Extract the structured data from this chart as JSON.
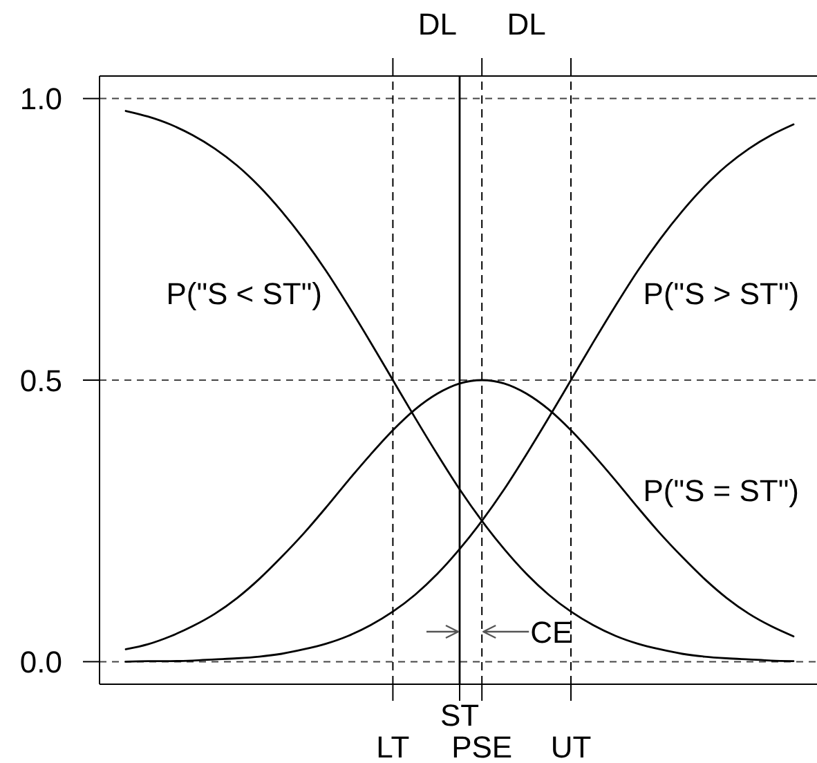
{
  "chart_data": {
    "type": "line",
    "categories": [
      null,
      null,
      null,
      null,
      null,
      null,
      null,
      null,
      null,
      null,
      null,
      null,
      "LT",
      null,
      null,
      "ST",
      "PSE",
      null,
      null,
      null,
      "UT",
      null,
      null,
      null,
      null,
      null,
      null,
      null,
      null,
      null,
      null
    ],
    "series": [
      {
        "name": "P(\"S < ST\")",
        "color": "#000000",
        "values": [
          0.978,
          0.968,
          0.954,
          0.935,
          0.911,
          0.881,
          0.844,
          0.8,
          0.75,
          0.694,
          0.632,
          0.567,
          0.5,
          0.433,
          0.368,
          0.306,
          0.25,
          0.2,
          0.156,
          0.119,
          0.089,
          0.065,
          0.046,
          0.032,
          0.022,
          0.014,
          0.009,
          0.006,
          0.004,
          0.002,
          0.001
        ]
      },
      {
        "name": "P(\"S > ST\")",
        "color": "#000000",
        "values": [
          0,
          0.001,
          0.001,
          0.002,
          0.004,
          0.006,
          0.009,
          0.014,
          0.022,
          0.032,
          0.046,
          0.065,
          0.089,
          0.119,
          0.156,
          0.2,
          0.25,
          0.306,
          0.368,
          0.433,
          0.5,
          0.567,
          0.632,
          0.694,
          0.75,
          0.8,
          0.844,
          0.881,
          0.911,
          0.935,
          0.954
        ]
      },
      {
        "name": "P(\"S = ST\")",
        "color": "#000000",
        "values": [
          0.022,
          0.031,
          0.045,
          0.063,
          0.085,
          0.113,
          0.147,
          0.186,
          0.228,
          0.274,
          0.322,
          0.368,
          0.411,
          0.448,
          0.476,
          0.494,
          0.5,
          0.494,
          0.476,
          0.448,
          0.411,
          0.368,
          0.322,
          0.274,
          0.228,
          0.186,
          0.147,
          0.113,
          0.085,
          0.063,
          0.045
        ]
      }
    ],
    "ylim": [
      -0.04,
      1.04
    ],
    "yticks": [
      {
        "value": 0,
        "label": "0.0"
      },
      {
        "value": 0.5,
        "label": "0.5"
      },
      {
        "value": 1,
        "label": "1.0"
      }
    ],
    "grid": "y",
    "marker": "none",
    "line_style": "solid",
    "ref_lines": [
      {
        "axis": "x",
        "value": "LT",
        "line_style": "dashed"
      },
      {
        "axis": "x",
        "value": "ST",
        "line_style": "solid"
      },
      {
        "axis": "x",
        "value": "PSE",
        "line_style": "dashed"
      },
      {
        "axis": "x",
        "value": "UT",
        "line_style": "dashed"
      }
    ],
    "annotations": [
      "DL",
      "DL",
      "CE"
    ]
  }
}
